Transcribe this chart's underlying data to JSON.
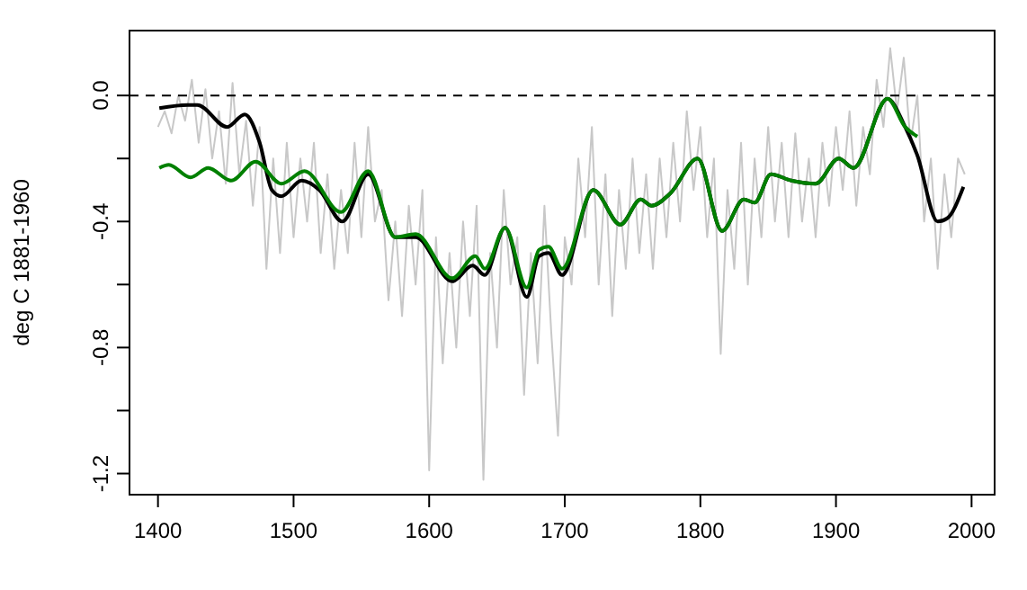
{
  "chart_data": {
    "type": "line",
    "ylabel": "deg C 1881-1960",
    "xlim": [
      1379,
      2017
    ],
    "ylim": [
      -1.267,
      0.206
    ],
    "xticks": [
      1400,
      1500,
      1600,
      1700,
      1800,
      1900,
      2000
    ],
    "yticks": [
      {
        "value": 0,
        "label": "0.0"
      },
      {
        "value": -0.4,
        "label": "-0.4"
      },
      {
        "value": -0.8,
        "label": "-0.8"
      },
      {
        "value": -1.2,
        "label": "-1.2"
      },
      {
        "value": -0.2,
        "label": null
      },
      {
        "value": -0.6,
        "label": null
      },
      {
        "value": -1.0,
        "label": null
      }
    ],
    "ref_lines": [
      {
        "axis": "y",
        "value": 0,
        "label": null,
        "color": "#000000",
        "line_style": "dashed"
      }
    ],
    "series": [
      {
        "color": "#c8c8c8",
        "x": [
          1400,
          1405,
          1410,
          1415,
          1420,
          1425,
          1430,
          1435,
          1440,
          1445,
          1450,
          1455,
          1460,
          1465,
          1470,
          1475,
          1480,
          1485,
          1490,
          1495,
          1500,
          1505,
          1510,
          1515,
          1520,
          1525,
          1530,
          1535,
          1540,
          1545,
          1550,
          1555,
          1560,
          1565,
          1570,
          1575,
          1580,
          1585,
          1590,
          1595,
          1600,
          1605,
          1610,
          1615,
          1620,
          1625,
          1630,
          1635,
          1640,
          1645,
          1650,
          1655,
          1660,
          1665,
          1670,
          1675,
          1680,
          1685,
          1690,
          1695,
          1700,
          1705,
          1710,
          1715,
          1720,
          1725,
          1730,
          1735,
          1740,
          1745,
          1750,
          1755,
          1760,
          1765,
          1770,
          1775,
          1780,
          1785,
          1790,
          1795,
          1800,
          1805,
          1810,
          1815,
          1820,
          1825,
          1830,
          1835,
          1840,
          1845,
          1850,
          1855,
          1860,
          1865,
          1870,
          1875,
          1880,
          1885,
          1890,
          1895,
          1900,
          1905,
          1910,
          1915,
          1920,
          1925,
          1930,
          1935,
          1940,
          1945,
          1950,
          1955,
          1960,
          1965,
          1970,
          1975,
          1980,
          1985,
          1990,
          1995
        ],
        "values": [
          -0.1,
          -0.05,
          -0.12,
          0.0,
          -0.08,
          0.05,
          -0.15,
          0.02,
          -0.2,
          -0.05,
          -0.28,
          0.04,
          -0.25,
          -0.08,
          -0.35,
          -0.1,
          -0.55,
          -0.2,
          -0.5,
          -0.15,
          -0.45,
          -0.2,
          -0.4,
          -0.15,
          -0.5,
          -0.25,
          -0.55,
          -0.3,
          -0.5,
          -0.15,
          -0.45,
          -0.1,
          -0.4,
          -0.3,
          -0.65,
          -0.4,
          -0.7,
          -0.35,
          -0.6,
          -0.3,
          -1.19,
          -0.45,
          -0.85,
          -0.5,
          -0.8,
          -0.4,
          -0.7,
          -0.35,
          -1.22,
          -0.5,
          -0.8,
          -0.3,
          -0.6,
          -0.45,
          -0.95,
          -0.5,
          -0.85,
          -0.35,
          -0.75,
          -1.08,
          -0.45,
          -0.6,
          -0.2,
          -0.45,
          -0.1,
          -0.6,
          -0.25,
          -0.7,
          -0.3,
          -0.55,
          -0.2,
          -0.5,
          -0.25,
          -0.55,
          -0.2,
          -0.45,
          -0.15,
          -0.4,
          -0.05,
          -0.3,
          -0.1,
          -0.45,
          -0.2,
          -0.82,
          -0.3,
          -0.55,
          -0.15,
          -0.6,
          -0.2,
          -0.45,
          -0.1,
          -0.4,
          -0.15,
          -0.45,
          -0.12,
          -0.4,
          -0.2,
          -0.45,
          -0.15,
          -0.35,
          -0.1,
          -0.3,
          -0.05,
          -0.35,
          -0.1,
          -0.25,
          0.05,
          -0.1,
          0.15,
          -0.05,
          0.12,
          -0.15,
          0.0,
          -0.4,
          -0.2,
          -0.55,
          -0.25,
          -0.45,
          -0.2,
          -0.25
        ]
      },
      {
        "color": "#000000",
        "x": [
          1401,
          1422,
          1429,
          1451,
          1464,
          1475,
          1484,
          1491,
          1506,
          1519,
          1536,
          1555,
          1575,
          1590,
          1617,
          1632,
          1641,
          1656,
          1672,
          1681,
          1688,
          1698,
          1721,
          1741,
          1756,
          1764,
          1778,
          1798,
          1816,
          1832,
          1840,
          1852,
          1867,
          1885,
          1902,
          1913,
          1938,
          1951,
          1960,
          1975,
          1982,
          1994
        ],
        "values": [
          -0.04,
          -0.03,
          -0.03,
          -0.1,
          -0.06,
          -0.15,
          -0.3,
          -0.32,
          -0.27,
          -0.3,
          -0.4,
          -0.25,
          -0.45,
          -0.45,
          -0.59,
          -0.54,
          -0.57,
          -0.42,
          -0.64,
          -0.51,
          -0.5,
          -0.57,
          -0.3,
          -0.41,
          -0.33,
          -0.35,
          -0.31,
          -0.2,
          -0.43,
          -0.33,
          -0.34,
          -0.25,
          -0.27,
          -0.28,
          -0.2,
          -0.23,
          -0.01,
          -0.1,
          -0.19,
          -0.4,
          -0.39,
          -0.29
        ]
      },
      {
        "color": "#008000",
        "x": [
          1401,
          1408,
          1424,
          1437,
          1454,
          1472,
          1491,
          1508,
          1535,
          1555,
          1575,
          1590,
          1617,
          1634,
          1641,
          1656,
          1672,
          1681,
          1688,
          1698,
          1721,
          1741,
          1756,
          1764,
          1778,
          1798,
          1816,
          1832,
          1840,
          1852,
          1867,
          1885,
          1902,
          1913,
          1938,
          1951,
          1960
        ],
        "values": [
          -0.23,
          -0.22,
          -0.26,
          -0.23,
          -0.27,
          -0.21,
          -0.28,
          -0.24,
          -0.37,
          -0.24,
          -0.45,
          -0.44,
          -0.58,
          -0.51,
          -0.55,
          -0.42,
          -0.61,
          -0.49,
          -0.48,
          -0.55,
          -0.3,
          -0.41,
          -0.33,
          -0.35,
          -0.31,
          -0.2,
          -0.43,
          -0.33,
          -0.34,
          -0.25,
          -0.27,
          -0.28,
          -0.2,
          -0.23,
          -0.01,
          -0.1,
          -0.13
        ]
      }
    ]
  }
}
